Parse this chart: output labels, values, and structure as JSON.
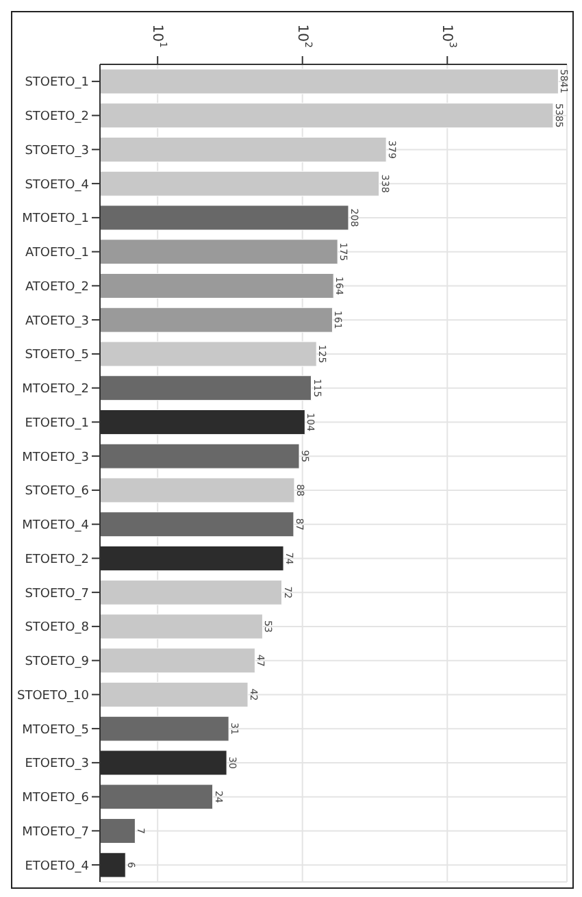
{
  "chart_data": {
    "type": "bar",
    "orientation": "horizontal",
    "log": "x",
    "grid": true,
    "data_labels": true,
    "categories": [
      "STOETO_1",
      "STOETO_2",
      "STOETO_3",
      "STOETO_4",
      "MTOETO_1",
      "ATOETO_1",
      "ATOETO_2",
      "ATOETO_3",
      "STOETO_5",
      "MTOETO_2",
      "ETOETO_1",
      "MTOETO_3",
      "STOETO_6",
      "MTOETO_4",
      "ETOETO_2",
      "STOETO_7",
      "STOETO_8",
      "STOETO_9",
      "STOETO_10",
      "MTOETO_5",
      "ETOETO_3",
      "MTOETO_6",
      "MTOETO_7",
      "ETOETO_4"
    ],
    "values": [
      5841,
      5385,
      379,
      338,
      208,
      175,
      164,
      161,
      125,
      115,
      104,
      95,
      88,
      87,
      74,
      72,
      53,
      47,
      42,
      31,
      30,
      24,
      7,
      6
    ],
    "colors": [
      "#c8c8c8",
      "#c8c8c8",
      "#c8c8c8",
      "#c8c8c8",
      "#686868",
      "#9a9a9a",
      "#9a9a9a",
      "#9a9a9a",
      "#c8c8c8",
      "#686868",
      "#2c2c2c",
      "#686868",
      "#c8c8c8",
      "#686868",
      "#2c2c2c",
      "#c8c8c8",
      "#c8c8c8",
      "#c8c8c8",
      "#c8c8c8",
      "#686868",
      "#2c2c2c",
      "#686868",
      "#686868",
      "#2c2c2c"
    ],
    "xlim": [
      4,
      6700
    ],
    "xticks": [
      {
        "value": 10,
        "label": "10$^{1}$"
      },
      {
        "value": 100,
        "label": "10$^{2}$"
      },
      {
        "value": 1000,
        "label": "10$^{3}$"
      }
    ]
  }
}
